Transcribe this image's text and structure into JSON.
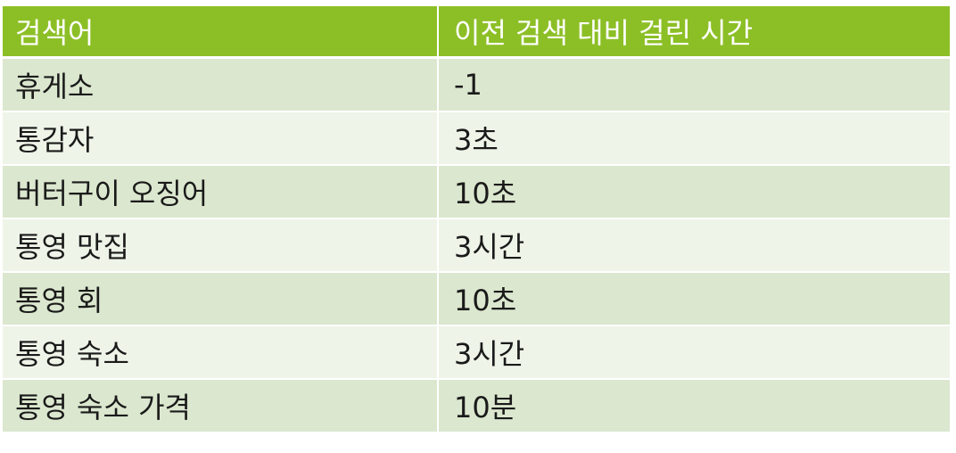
{
  "table": {
    "headers": [
      "검색어",
      "이전 검색 대비 걸린 시간"
    ],
    "rows": [
      [
        "휴게소",
        "-1"
      ],
      [
        "통감자",
        "3초"
      ],
      [
        "버터구이 오징어",
        "10초"
      ],
      [
        "통영 맛집",
        "3시간"
      ],
      [
        "통영 회",
        "10초"
      ],
      [
        "통영 숙소",
        "3시간"
      ],
      [
        "통영 숙소 가격",
        "10분"
      ]
    ]
  },
  "colors": {
    "header_bg": "#8cbf26",
    "row_odd": "#dbe7ce",
    "row_even": "#eef4e8"
  }
}
